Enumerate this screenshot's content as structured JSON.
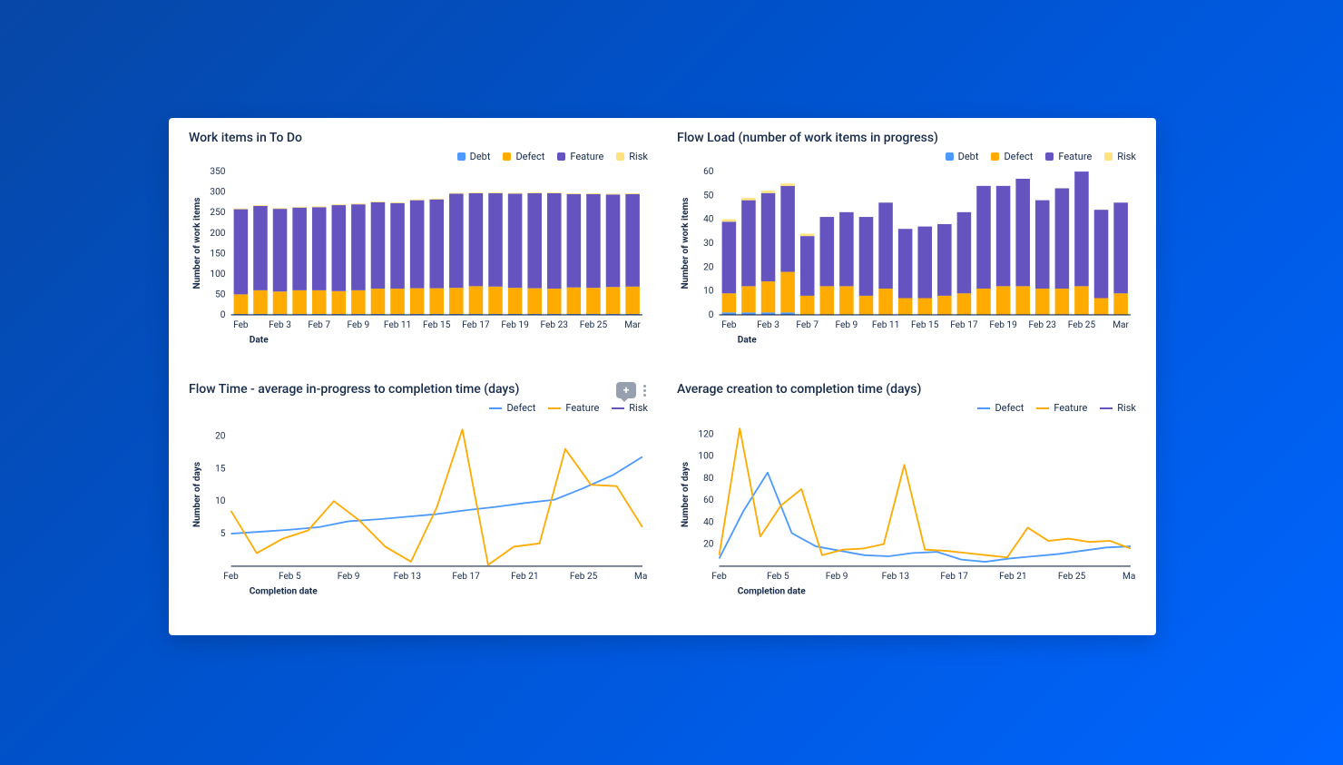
{
  "colors": {
    "debt": "#4c9aff",
    "defect": "#ffab00",
    "feature": "#6554c0",
    "risk": "#ffe380",
    "defect_line": "#4c9aff",
    "feature_line": "#ffab00",
    "risk_line": "#6554c0",
    "axis": "#172b4d",
    "grid": "#dfe1e6"
  },
  "bar_legend": [
    "Debt",
    "Defect",
    "Feature",
    "Risk"
  ],
  "line_legend": [
    "Defect",
    "Feature",
    "Risk"
  ],
  "panel1": {
    "title": "Work items in To Do",
    "type": "stacked-bar",
    "ylabel": "Number of work items",
    "xlabel": "Date",
    "ylim": [
      0,
      350
    ],
    "ytick_step": 50,
    "categories": [
      "Feb",
      "",
      "Feb 3",
      "",
      "Feb 7",
      "",
      "Feb 9",
      "",
      "Feb 11",
      "",
      "Feb 15",
      "",
      "Feb 17",
      "",
      "Feb 19",
      "",
      "Feb 23",
      "",
      "Feb 25",
      "",
      "Mar"
    ],
    "series": {
      "debt": [
        2,
        2,
        2,
        2,
        2,
        2,
        2,
        2,
        2,
        2,
        2,
        2,
        2,
        2,
        2,
        2,
        2,
        2,
        2,
        2,
        2
      ],
      "defect": [
        48,
        58,
        55,
        58,
        58,
        56,
        58,
        62,
        62,
        63,
        63,
        64,
        68,
        67,
        64,
        63,
        62,
        65,
        64,
        66,
        67
      ],
      "feature": [
        208,
        206,
        202,
        202,
        203,
        210,
        210,
        211,
        209,
        215,
        217,
        230,
        227,
        228,
        230,
        232,
        233,
        228,
        229,
        226,
        226
      ],
      "risk": [
        2,
        2,
        2,
        2,
        2,
        2,
        2,
        2,
        2,
        2,
        2,
        2,
        2,
        2,
        2,
        2,
        2,
        2,
        2,
        2,
        2
      ]
    }
  },
  "panel2": {
    "title": "Flow Load (number of work items in progress)",
    "type": "stacked-bar",
    "ylabel": "Number of work items",
    "xlabel": "Date",
    "ylim": [
      0,
      60
    ],
    "ytick_step": 10,
    "categories": [
      "Feb",
      "",
      "Feb 3",
      "",
      "Feb 7",
      "",
      "Feb 9",
      "",
      "Feb 11",
      "",
      "Feb 15",
      "",
      "Feb 17",
      "",
      "Feb 19",
      "",
      "Feb 23",
      "",
      "Feb 25",
      "",
      "Mar"
    ],
    "series": {
      "debt": [
        1,
        1,
        1,
        1,
        0,
        0,
        0,
        0,
        0,
        0,
        0,
        0,
        0,
        0,
        0,
        0,
        0,
        0,
        0,
        0,
        0
      ],
      "defect": [
        8,
        11,
        13,
        17,
        8,
        12,
        12,
        8,
        11,
        7,
        7,
        8,
        9,
        11,
        12,
        12,
        11,
        11,
        12,
        7,
        9
      ],
      "feature": [
        30,
        36,
        37,
        36,
        25,
        29,
        31,
        33,
        36,
        29,
        30,
        30,
        34,
        43,
        42,
        45,
        37,
        42,
        48,
        37,
        38
      ],
      "risk": [
        1,
        1,
        1,
        1,
        1,
        0,
        0,
        0,
        0,
        0,
        0,
        0,
        0,
        0,
        0,
        0,
        0,
        0,
        0,
        0,
        0
      ]
    }
  },
  "panel3": {
    "title": "Flow Time - average in-progress to completion time (days)",
    "type": "line",
    "ylabel": "Number of days",
    "xlabel": "Completion date",
    "ylim": [
      0,
      22
    ],
    "yticks": [
      5,
      10,
      15,
      20
    ],
    "categories": [
      "Feb",
      "",
      "Feb 5",
      "",
      "Feb 9",
      "",
      "Feb 13",
      "",
      "Feb 17",
      "",
      "Feb 21",
      "",
      "Feb 25",
      "",
      "Mar"
    ],
    "series": {
      "Defect": [
        5.0,
        5.3,
        5.6,
        6.0,
        6.9,
        7.2,
        7.6,
        8.0,
        8.6,
        9.1,
        9.7,
        10.2,
        12.0,
        14.0,
        16.8
      ],
      "Feature": [
        8.5,
        2.0,
        4.2,
        5.5,
        10.0,
        7.0,
        3.0,
        0.7,
        9.0,
        21.0,
        0.2,
        3.0,
        3.5,
        18.0,
        12.5,
        12.3,
        6.0
      ],
      "Risk": []
    },
    "has_toolbar": true
  },
  "panel4": {
    "title": "Average creation to completion time (days)",
    "type": "line",
    "ylabel": "Number of days",
    "xlabel": "Completion date",
    "ylim": [
      0,
      130
    ],
    "yticks": [
      20,
      40,
      60,
      80,
      100,
      120
    ],
    "categories": [
      "Feb",
      "",
      "Feb 5",
      "",
      "Feb 9",
      "",
      "Feb 13",
      "",
      "Feb 17",
      "",
      "Feb 21",
      "",
      "Feb 25",
      "",
      "Mar"
    ],
    "series": {
      "Defect": [
        7,
        50,
        85,
        30,
        18,
        14,
        10,
        9,
        12,
        13,
        6,
        4,
        7,
        9,
        11,
        14,
        17,
        18
      ],
      "Feature": [
        10,
        125,
        27,
        55,
        70,
        10,
        15,
        16,
        20,
        92,
        15,
        14,
        12,
        10,
        8,
        35,
        23,
        25,
        22,
        23,
        16
      ],
      "Risk": []
    }
  }
}
